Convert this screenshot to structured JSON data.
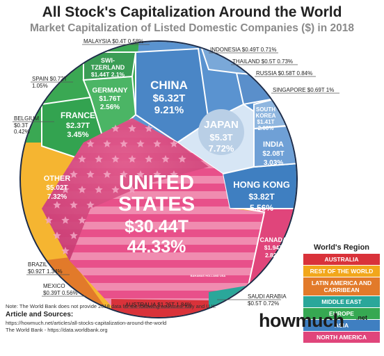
{
  "title": "All Stock's Capitalization Around the World",
  "subtitle": "Market Capitalization of Listed Domestic Companies ($) in 2018",
  "regions": {
    "title": "World's Region",
    "items": [
      {
        "label": "AUSTRALIA",
        "color": "#d9323a"
      },
      {
        "label": "REST OF THE WORLD",
        "color": "#f2a71b"
      },
      {
        "label": "LATIN AMERICA AND CARRIBEAN",
        "color": "#e27a2a"
      },
      {
        "label": "MIDDLE EAST",
        "color": "#2aa79a"
      },
      {
        "label": "EUROPE",
        "color": "#36a852"
      },
      {
        "label": "ASIA",
        "color": "#3f7fc1"
      },
      {
        "label": "NORTH AMERICA",
        "color": "#e0457b"
      }
    ]
  },
  "countries": [
    {
      "name": "UNITED STATES",
      "value": "$30.44T",
      "share": "44.33%",
      "region": "NORTH AMERICA"
    },
    {
      "name": "CHINA",
      "value": "$6.32T",
      "share": "9.21%",
      "region": "ASIA"
    },
    {
      "name": "JAPAN",
      "value": "$5.3T",
      "share": "7.72%",
      "region": "ASIA"
    },
    {
      "name": "HONG KONG",
      "value": "$3.82T",
      "share": "5.56%",
      "region": "ASIA"
    },
    {
      "name": "INDIA",
      "value": "$2.08T",
      "share": "3.03%",
      "region": "ASIA"
    },
    {
      "name": "SOUTH KOREA",
      "value": "$1.41T",
      "share": "2.06%",
      "region": "ASIA"
    },
    {
      "name": "SINGAPORE",
      "value": "$0.69T",
      "share": "1%",
      "region": "ASIA"
    },
    {
      "name": "RUSSIA",
      "value": "$0.58T",
      "share": "0.84%",
      "region": "EUROPE"
    },
    {
      "name": "THAILAND",
      "value": "$0.5T",
      "share": "0.73%",
      "region": "ASIA"
    },
    {
      "name": "INDONESIA",
      "value": "$0.49T",
      "share": "0.71%",
      "region": "ASIA"
    },
    {
      "name": "MALAYSIA",
      "value": "$0.4T",
      "share": "0.58%",
      "region": "ASIA"
    },
    {
      "name": "SWITZERLAND",
      "value": "$1.44T",
      "share": "2.1%",
      "region": "EUROPE"
    },
    {
      "name": "GERMANY",
      "value": "$1.76T",
      "share": "2.56%",
      "region": "EUROPE"
    },
    {
      "name": "FRANCE",
      "value": "$2.37T",
      "share": "3.45%",
      "region": "EUROPE"
    },
    {
      "name": "SPAIN",
      "value": "$0.72T",
      "share": "1.05%",
      "region": "EUROPE"
    },
    {
      "name": "BELGIUM",
      "value": "$0.3T",
      "share": "0.42%",
      "region": "EUROPE"
    },
    {
      "name": "OTHER",
      "value": "$5.02T",
      "share": "7.32%",
      "region": "REST OF THE WORLD"
    },
    {
      "name": "BRAZIL",
      "value": "$0.92T",
      "share": "1.34%",
      "region": "LATIN AMERICA AND CARRIBEAN"
    },
    {
      "name": "MEXICO",
      "value": "$0.39T",
      "share": "0.56%",
      "region": "LATIN AMERICA AND CARRIBEAN"
    },
    {
      "name": "AUSTRALIA",
      "value": "$1.26T",
      "share": "1.84%",
      "region": "AUSTRALIA"
    },
    {
      "name": "SAUDI ARABIA",
      "value": "$0.5T",
      "share": "0.72%",
      "region": "MIDDLE EAST"
    },
    {
      "name": "CANADA",
      "value": "$1.94T",
      "share": "2.82%",
      "region": "NORTH AMERICA"
    }
  ],
  "small_label": "BAHAMAS HOLLAND USA",
  "labels": {
    "us1": "UNITED",
    "us2": "STATES",
    "china": "CHINA",
    "japan": "JAPAN",
    "hk": "HONG KONG",
    "india": "INDIA",
    "sk1": "SOUTH",
    "sk2": "KOREA",
    "france": "FRANCE",
    "germany": "GERMANY",
    "swi1": "SWI-",
    "swi2": "TZERLAND",
    "other": "OTHER",
    "canada": "CANADA",
    "malaysia": "MALAYSIA $0.4T 0.58%",
    "indonesia": "INDONESIA $0.49T 0.71%",
    "thailand": "THAILAND $0.5T 0.73%",
    "russia": "RUSSIA $0.58T 0.84%",
    "singapore": "SINGAPORE $0.69T 1%",
    "spain1": "SPAIN $0.72T",
    "spain2": "1.05%",
    "belgium1": "BELGIUM",
    "belgium2": "$0.3T",
    "belgium3": "0.42%",
    "brazil1": "BRAZIL",
    "brazil2": "$0.92T 1.34%",
    "mexico1": "MEXICO",
    "mexico2": "$0.39T 0.56%",
    "australia": "AUSTRALIA $1.26T 1.84%",
    "saudi1": "SAUDI ARABIA",
    "saudi2": "$0.5T 0.72%"
  },
  "footer": {
    "note": "Note: The World Bank does not provide 2018 data for the following countries: Italy and U.K.",
    "sources_heading": "Article and Sources:",
    "source_1": "https://howmuch.net/articles/all-stocks-capitalization-around-the-world",
    "source_2": "The World Bank - https://data.worldbank.org"
  },
  "brand": {
    "name": "howmuch",
    "suffix": ".net"
  }
}
